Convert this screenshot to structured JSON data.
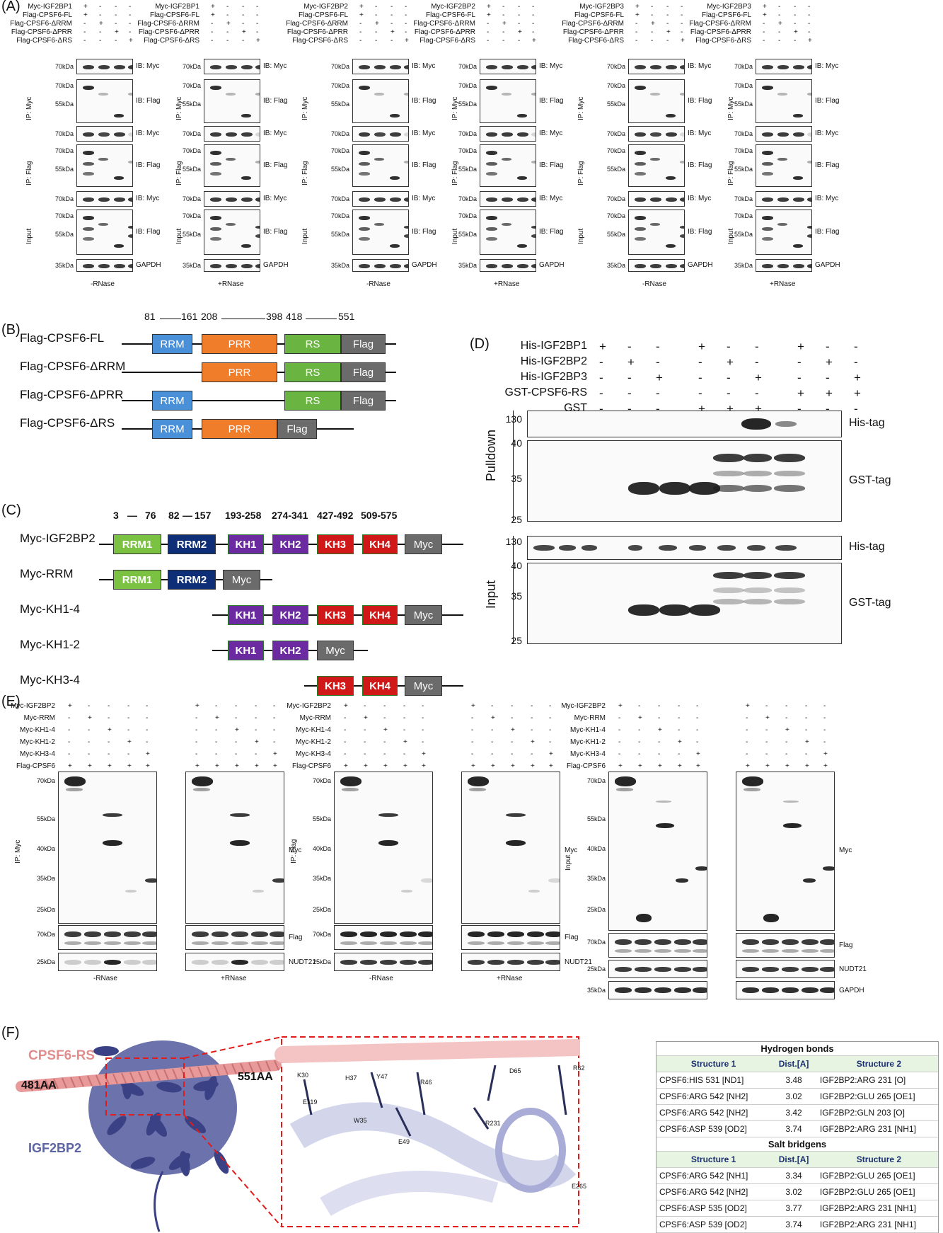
{
  "panels": {
    "A": "(A)",
    "B": "(B)",
    "C": "(C)",
    "D": "(D)",
    "E": "(E)",
    "F": "(F)"
  },
  "panelA": {
    "groups": [
      {
        "myc": "Myc-IGF2BP1",
        "cond": "-RNase"
      },
      {
        "myc": "Myc-IGF2BP1",
        "cond": "+RNase"
      },
      {
        "myc": "Myc-IGF2BP2",
        "cond": "-RNase"
      },
      {
        "myc": "Myc-IGF2BP2",
        "cond": "+RNase"
      },
      {
        "myc": "Myc-IGF2BP3",
        "cond": "-RNase"
      },
      {
        "myc": "Myc-IGF2BP3",
        "cond": "+RNase"
      }
    ],
    "rows": [
      "Flag-CPSF6-FL",
      "Flag-CPSF6-ΔRRM",
      "Flag-CPSF6-ΔPRR",
      "Flag-CPSF6-ΔRS"
    ],
    "signs": [
      [
        "+",
        "-",
        "-",
        "-"
      ],
      [
        "+",
        "-",
        "-",
        "-"
      ],
      [
        "-",
        "+",
        "-",
        "-"
      ],
      [
        "-",
        "-",
        "+",
        "-"
      ],
      [
        "-",
        "-",
        "-",
        "+"
      ]
    ],
    "ib": [
      "IB: Myc",
      "IB: Flag",
      "IB: Myc",
      "IB: Flag",
      "IB: Myc",
      "IB: Flag",
      "GAPDH"
    ],
    "sections": [
      "IP: Myc",
      "IP: Flag",
      "Input"
    ],
    "mw": {
      "k70": "70kDa",
      "k55": "55kDa",
      "k35": "35kDa"
    }
  },
  "panelB": {
    "constructs": [
      "Flag-CPSF6-FL",
      "Flag-CPSF6-ΔRRM",
      "Flag-CPSF6-ΔPRR",
      "Flag-CPSF6-ΔRS"
    ],
    "pos": {
      "p81": "81",
      "p161": "161",
      "p208": "208",
      "p398": "398",
      "p418": "418",
      "p551": "551"
    },
    "domains": {
      "rrm": "RRM",
      "prr": "PRR",
      "rs": "RS",
      "flag": "Flag"
    },
    "colors": {
      "rrm": "#4a90d9",
      "prr": "#f07d2a",
      "rs": "#6ab542",
      "flag": "#6b6b6b"
    }
  },
  "panelC": {
    "constructs": [
      "Myc-IGF2BP2",
      "Myc-RRM",
      "Myc-KH1-4",
      "Myc-KH1-2",
      "Myc-KH3-4"
    ],
    "pos": {
      "r1": "3",
      "r1b": "76",
      "r2": "82",
      "r2b": "157",
      "kh1": "193-258",
      "kh2": "274-341",
      "kh3": "427-492",
      "kh4": "509-575"
    },
    "domains": {
      "rrm1": "RRM1",
      "rrm2": "RRM2",
      "kh1": "KH1",
      "kh2": "KH2",
      "kh3": "KH3",
      "kh4": "KH4",
      "myc": "Myc"
    },
    "colors": {
      "rrm1": "#7cc242",
      "rrm2": "#0e2e78",
      "kh12": "#6b2aa0",
      "kh34": "#d01818",
      "myc": "#6b6b6b"
    }
  },
  "panelD": {
    "rows": [
      "His-IGF2BP1",
      "His-IGF2BP2",
      "His-IGF2BP3",
      "GST-CPSF6-RS",
      "GST"
    ],
    "signs": [
      [
        "+",
        "-",
        "-",
        "+",
        "-",
        "-",
        "+",
        "-",
        "-"
      ],
      [
        "-",
        "+",
        "-",
        "-",
        "+",
        "-",
        "-",
        "+",
        "-"
      ],
      [
        "-",
        "-",
        "+",
        "-",
        "-",
        "+",
        "-",
        "-",
        "+"
      ],
      [
        "-",
        "-",
        "-",
        "-",
        "-",
        "-",
        "+",
        "+",
        "+"
      ],
      [
        "-",
        "-",
        "-",
        "+",
        "+",
        "+",
        "-",
        "-",
        "-"
      ]
    ],
    "sections": [
      "Pulldown",
      "Input"
    ],
    "tags": [
      "His-tag",
      "GST-tag",
      "His-tag",
      "GST-tag"
    ],
    "mw": {
      "m130": "130",
      "m40": "40",
      "m35": "35",
      "m25": "25"
    }
  },
  "panelE": {
    "rows": [
      "Myc-IGF2BP2",
      "Myc-RRM",
      "Myc-KH1-4",
      "Myc-KH1-2",
      "Myc-KH3-4",
      "Flag-CPSF6"
    ],
    "signs": [
      [
        "+",
        "-",
        "-",
        "-",
        "-"
      ],
      [
        "-",
        "+",
        "-",
        "-",
        "-"
      ],
      [
        "-",
        "-",
        "+",
        "-",
        "-"
      ],
      [
        "-",
        "-",
        "-",
        "+",
        "-"
      ],
      [
        "-",
        "-",
        "-",
        "-",
        "+"
      ],
      [
        "+",
        "+",
        "+",
        "+",
        "+"
      ]
    ],
    "sections": [
      "IP: Myc",
      "IP: Flag",
      "Input"
    ],
    "conds": [
      "-RNase",
      "+RNase"
    ],
    "labels": {
      "myc": "Myc",
      "flag": "Flag",
      "nudt": "NUDT21",
      "gapdh": "GAPDH"
    },
    "mw": {
      "k70": "70kDa",
      "k55": "55kDa",
      "k40": "40kDa",
      "k35": "35kDa",
      "k25": "25kDa"
    }
  },
  "panelF": {
    "cpsf": "CPSF6-RS",
    "igf": "IGF2BP2",
    "aa481": "481AA",
    "aa551": "551AA",
    "residues": [
      "K30",
      "E119",
      "H37",
      "Y47",
      "R46",
      "W35",
      "E49",
      "D65",
      "R231",
      "R62",
      "E265"
    ],
    "hb_title": "Hydrogen bonds",
    "sb_title": "Salt bridgens",
    "headers": [
      "Structure 1",
      "Dist.[A]",
      "Structure 2"
    ],
    "hbonds": [
      [
        "CPSF6:HIS 531 [ND1]",
        "3.48",
        "IGF2BP2:ARG 231 [O]"
      ],
      [
        "CPSF6:ARG 542 [NH2]",
        "3.02",
        "IGF2BP2:GLU 265 [OE1]"
      ],
      [
        "CPSF6:ARG 542 [NH2]",
        "3.42",
        "IGF2BP2:GLN 203 [O]"
      ],
      [
        "CPSF6:ASP 539 [OD2]",
        "3.74",
        "IGF2BP2:ARG 231 [NH1]"
      ]
    ],
    "salt": [
      [
        "CPSF6:ARG 542 [NH1]",
        "3.34",
        "IGF2BP2:GLU 265 [OE1]"
      ],
      [
        "CPSF6:ARG 542 [NH2]",
        "3.02",
        "IGF2BP2:GLU 265 [OE1]"
      ],
      [
        "CPSF6:ASP 535 [OD2]",
        "3.77",
        "IGF2BP2:ARG 231 [NH1]"
      ],
      [
        "CPSF6:ASP 539 [OD2]",
        "3.74",
        "IGF2BP2:ARG 231 [NH1]"
      ]
    ]
  }
}
